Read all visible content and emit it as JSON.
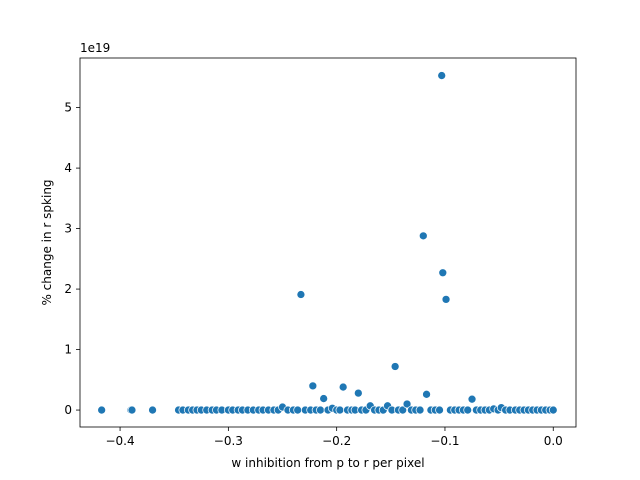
{
  "chart_data": {
    "type": "scatter",
    "title": "",
    "xlabel": "w inhibition from p to r per pixel",
    "ylabel": "% change in r spking",
    "y_offset_label": "1e19",
    "y_scale": 1e+19,
    "xlim": [
      -0.437,
      0.021
    ],
    "ylim": [
      -0.28,
      5.82
    ],
    "xticks": [
      -0.4,
      -0.3,
      -0.2,
      -0.1,
      0.0
    ],
    "xtick_labels": [
      "−0.4",
      "−0.3",
      "−0.2",
      "−0.1",
      "0.0"
    ],
    "yticks": [
      0,
      1,
      2,
      3,
      4,
      5
    ],
    "ytick_labels": [
      "0",
      "1",
      "2",
      "3",
      "4",
      "5"
    ],
    "grid": false,
    "marker_color": "#1f77b4",
    "points": [
      {
        "x": -0.417,
        "y": 0.0
      },
      {
        "x": -0.39,
        "y": 0.0
      },
      {
        "x": -0.389,
        "y": 0.0
      },
      {
        "x": -0.37,
        "y": 0.0
      },
      {
        "x": -0.346,
        "y": 0.0
      },
      {
        "x": -0.342,
        "y": 0.0
      },
      {
        "x": -0.337,
        "y": 0.0
      },
      {
        "x": -0.333,
        "y": 0.0
      },
      {
        "x": -0.329,
        "y": 0.0
      },
      {
        "x": -0.325,
        "y": 0.0
      },
      {
        "x": -0.32,
        "y": 0.0
      },
      {
        "x": -0.315,
        "y": 0.0
      },
      {
        "x": -0.311,
        "y": 0.0
      },
      {
        "x": -0.306,
        "y": 0.0
      },
      {
        "x": -0.3,
        "y": 0.0
      },
      {
        "x": -0.296,
        "y": 0.0
      },
      {
        "x": -0.291,
        "y": 0.0
      },
      {
        "x": -0.287,
        "y": 0.0
      },
      {
        "x": -0.282,
        "y": 0.0
      },
      {
        "x": -0.277,
        "y": 0.0
      },
      {
        "x": -0.272,
        "y": 0.0
      },
      {
        "x": -0.268,
        "y": 0.0
      },
      {
        "x": -0.263,
        "y": 0.0
      },
      {
        "x": -0.258,
        "y": 0.0
      },
      {
        "x": -0.254,
        "y": 0.0
      },
      {
        "x": -0.25,
        "y": 0.05
      },
      {
        "x": -0.245,
        "y": 0.0
      },
      {
        "x": -0.24,
        "y": 0.0
      },
      {
        "x": -0.236,
        "y": 0.0
      },
      {
        "x": -0.233,
        "y": 1.91
      },
      {
        "x": -0.229,
        "y": 0.0
      },
      {
        "x": -0.224,
        "y": 0.0
      },
      {
        "x": -0.222,
        "y": 0.4
      },
      {
        "x": -0.219,
        "y": 0.0
      },
      {
        "x": -0.215,
        "y": 0.0
      },
      {
        "x": -0.212,
        "y": 0.19
      },
      {
        "x": -0.208,
        "y": 0.0
      },
      {
        "x": -0.204,
        "y": 0.03
      },
      {
        "x": -0.2,
        "y": 0.0
      },
      {
        "x": -0.197,
        "y": 0.0
      },
      {
        "x": -0.194,
        "y": 0.38
      },
      {
        "x": -0.19,
        "y": 0.0
      },
      {
        "x": -0.186,
        "y": 0.0
      },
      {
        "x": -0.183,
        "y": 0.0
      },
      {
        "x": -0.18,
        "y": 0.28
      },
      {
        "x": -0.177,
        "y": 0.0
      },
      {
        "x": -0.173,
        "y": 0.0
      },
      {
        "x": -0.169,
        "y": 0.07
      },
      {
        "x": -0.165,
        "y": 0.0
      },
      {
        "x": -0.161,
        "y": 0.0
      },
      {
        "x": -0.157,
        "y": 0.0
      },
      {
        "x": -0.153,
        "y": 0.07
      },
      {
        "x": -0.149,
        "y": 0.0
      },
      {
        "x": -0.146,
        "y": 0.72
      },
      {
        "x": -0.143,
        "y": 0.0
      },
      {
        "x": -0.139,
        "y": 0.0
      },
      {
        "x": -0.135,
        "y": 0.1
      },
      {
        "x": -0.131,
        "y": 0.0
      },
      {
        "x": -0.127,
        "y": 0.0
      },
      {
        "x": -0.123,
        "y": 0.0
      },
      {
        "x": -0.12,
        "y": 2.88
      },
      {
        "x": -0.117,
        "y": 0.26
      },
      {
        "x": -0.113,
        "y": 0.0
      },
      {
        "x": -0.109,
        "y": 0.0
      },
      {
        "x": -0.105,
        "y": 0.0
      },
      {
        "x": -0.103,
        "y": 5.53
      },
      {
        "x": -0.102,
        "y": 2.27
      },
      {
        "x": -0.099,
        "y": 1.83
      },
      {
        "x": -0.095,
        "y": 0.0
      },
      {
        "x": -0.091,
        "y": 0.0
      },
      {
        "x": -0.087,
        "y": 0.0
      },
      {
        "x": -0.083,
        "y": 0.0
      },
      {
        "x": -0.079,
        "y": 0.0
      },
      {
        "x": -0.075,
        "y": 0.18
      },
      {
        "x": -0.071,
        "y": 0.0
      },
      {
        "x": -0.067,
        "y": 0.0
      },
      {
        "x": -0.063,
        "y": 0.0
      },
      {
        "x": -0.059,
        "y": 0.0
      },
      {
        "x": -0.055,
        "y": 0.02
      },
      {
        "x": -0.051,
        "y": 0.0
      },
      {
        "x": -0.048,
        "y": 0.04
      },
      {
        "x": -0.044,
        "y": 0.0
      },
      {
        "x": -0.04,
        "y": 0.0
      },
      {
        "x": -0.035,
        "y": 0.0
      },
      {
        "x": -0.031,
        "y": 0.0
      },
      {
        "x": -0.027,
        "y": 0.0
      },
      {
        "x": -0.023,
        "y": 0.0
      },
      {
        "x": -0.019,
        "y": 0.0
      },
      {
        "x": -0.015,
        "y": 0.0
      },
      {
        "x": -0.011,
        "y": 0.0
      },
      {
        "x": -0.007,
        "y": 0.0
      },
      {
        "x": -0.003,
        "y": 0.0
      },
      {
        "x": 0.0,
        "y": 0.0
      }
    ]
  }
}
